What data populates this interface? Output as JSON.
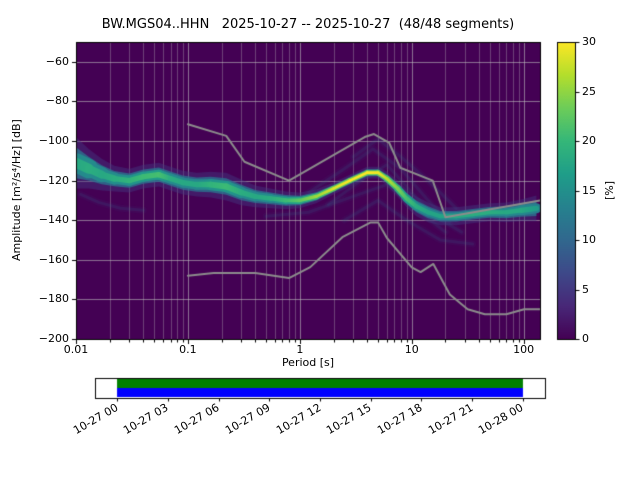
{
  "title": "BW.MGS04..HHN   2025-10-27 -- 2025-10-27  (48/48 segments)",
  "chart_data": {
    "type": "heatmap",
    "title": "BW.MGS04..HHN   2025-10-27 -- 2025-10-27  (48/48 segments)",
    "station_id": "BW.MGS04..HHN",
    "date_start": "2025-10-27",
    "date_end": "2025-10-27",
    "segments_used": 48,
    "segments_total": 48,
    "xlabel": "Period [s]",
    "ylabel": "Amplitude [m²/s⁴/Hz] [dB]",
    "background_color": "#440154",
    "grid_color": "#bebebe",
    "x_axis": {
      "scale": "log",
      "min": 0.01,
      "max": 140,
      "ticks": [
        {
          "v": 0.01,
          "label": "0.01"
        },
        {
          "v": 0.1,
          "label": "0.1"
        },
        {
          "v": 1,
          "label": "1"
        },
        {
          "v": 10,
          "label": "10"
        },
        {
          "v": 100,
          "label": "100"
        }
      ]
    },
    "y_axis": {
      "min": -200,
      "max": -50,
      "ticks": [
        {
          "v": -60,
          "label": "−60"
        },
        {
          "v": -80,
          "label": "−80"
        },
        {
          "v": -100,
          "label": "−100"
        },
        {
          "v": -120,
          "label": "−120"
        },
        {
          "v": -140,
          "label": "−140"
        },
        {
          "v": -160,
          "label": "−160"
        },
        {
          "v": -180,
          "label": "−180"
        },
        {
          "v": -200,
          "label": "−200"
        }
      ]
    },
    "colorbar": {
      "label": "[%]",
      "min": 0,
      "max": 30,
      "ticks": [
        0,
        5,
        10,
        15,
        20,
        25,
        30
      ],
      "viridis_stops": [
        "#440154",
        "#482878",
        "#3e4989",
        "#31688e",
        "#26828e",
        "#1f9e89",
        "#35b779",
        "#6dcd59",
        "#b4de2c",
        "#fde725"
      ]
    },
    "psd_band": [
      {
        "p": 0.01,
        "db": -111,
        "w": 26,
        "c": 0.6
      },
      {
        "p": 0.013,
        "db": -114,
        "w": 20,
        "c": 0.62
      },
      {
        "p": 0.017,
        "db": -117,
        "w": 16,
        "c": 0.6
      },
      {
        "p": 0.022,
        "db": -119,
        "w": 13,
        "c": 0.62
      },
      {
        "p": 0.03,
        "db": -120,
        "w": 12,
        "c": 0.65
      },
      {
        "p": 0.04,
        "db": -118,
        "w": 12,
        "c": 0.68
      },
      {
        "p": 0.055,
        "db": -117,
        "w": 12,
        "c": 0.7
      },
      {
        "p": 0.07,
        "db": -119,
        "w": 12,
        "c": 0.62
      },
      {
        "p": 0.09,
        "db": -121,
        "w": 12,
        "c": 0.6
      },
      {
        "p": 0.12,
        "db": -122,
        "w": 12,
        "c": 0.6
      },
      {
        "p": 0.16,
        "db": -122,
        "w": 13,
        "c": 0.65
      },
      {
        "p": 0.22,
        "db": -123,
        "w": 14,
        "c": 0.68
      },
      {
        "p": 0.3,
        "db": -126,
        "w": 13,
        "c": 0.62
      },
      {
        "p": 0.4,
        "db": -128,
        "w": 11,
        "c": 0.6
      },
      {
        "p": 0.55,
        "db": -129,
        "w": 10,
        "c": 0.62
      },
      {
        "p": 0.75,
        "db": -130,
        "w": 9,
        "c": 0.68
      },
      {
        "p": 1.0,
        "db": -130,
        "w": 8,
        "c": 0.75
      },
      {
        "p": 1.4,
        "db": -128,
        "w": 7,
        "c": 0.85
      },
      {
        "p": 2.0,
        "db": -124,
        "w": 6,
        "c": 0.95
      },
      {
        "p": 2.8,
        "db": -120,
        "w": 6,
        "c": 1.0
      },
      {
        "p": 4.0,
        "db": -116,
        "w": 6,
        "c": 1.0
      },
      {
        "p": 5.0,
        "db": -116,
        "w": 6,
        "c": 0.98
      },
      {
        "p": 6.0,
        "db": -119,
        "w": 7,
        "c": 0.9
      },
      {
        "p": 7.5,
        "db": -124,
        "w": 8,
        "c": 0.8
      },
      {
        "p": 9.0,
        "db": -129,
        "w": 9,
        "c": 0.7
      },
      {
        "p": 11,
        "db": -133,
        "w": 10,
        "c": 0.62
      },
      {
        "p": 14,
        "db": -136,
        "w": 10,
        "c": 0.58
      },
      {
        "p": 18,
        "db": -138,
        "w": 9,
        "c": 0.58
      },
      {
        "p": 25,
        "db": -138,
        "w": 9,
        "c": 0.6
      },
      {
        "p": 35,
        "db": -137,
        "w": 9,
        "c": 0.62
      },
      {
        "p": 50,
        "db": -136,
        "w": 9,
        "c": 0.62
      },
      {
        "p": 70,
        "db": -136,
        "w": 10,
        "c": 0.6
      },
      {
        "p": 95,
        "db": -135,
        "w": 11,
        "c": 0.6
      },
      {
        "p": 130,
        "db": -134,
        "w": 13,
        "c": 0.55
      }
    ],
    "wisps": [
      [
        [
          1.2,
          -126
        ],
        [
          2.5,
          -114
        ],
        [
          4.5,
          -104
        ],
        [
          8,
          -114
        ],
        [
          14,
          -130
        ],
        [
          22,
          -141
        ]
      ],
      [
        [
          1.8,
          -132
        ],
        [
          3.5,
          -120
        ],
        [
          6,
          -112
        ],
        [
          10,
          -126
        ],
        [
          16,
          -138
        ],
        [
          28,
          -146
        ]
      ],
      [
        [
          2.5,
          -140
        ],
        [
          5,
          -130
        ],
        [
          9,
          -140
        ],
        [
          18,
          -150
        ],
        [
          35,
          -152
        ]
      ],
      [
        [
          0.5,
          -138
        ],
        [
          1.2,
          -136
        ],
        [
          3,
          -128
        ],
        [
          6,
          -122
        ],
        [
          12,
          -136
        ],
        [
          20,
          -146
        ]
      ],
      [
        [
          3,
          -108
        ],
        [
          5,
          -99
        ],
        [
          8,
          -108
        ],
        [
          14,
          -120
        ],
        [
          25,
          -134
        ]
      ],
      [
        [
          0.011,
          -127
        ],
        [
          0.016,
          -131
        ],
        [
          0.025,
          -134
        ],
        [
          0.04,
          -135
        ]
      ]
    ],
    "noise_models": {
      "color": "#8c8c8c",
      "nhnm": [
        [
          0.1,
          -91.5
        ],
        [
          0.22,
          -97.4
        ],
        [
          0.32,
          -110.5
        ],
        [
          0.8,
          -120.0
        ],
        [
          3.8,
          -98.0
        ],
        [
          4.6,
          -96.5
        ],
        [
          6.3,
          -101.0
        ],
        [
          7.9,
          -113.5
        ],
        [
          15.4,
          -120.0
        ],
        [
          20.0,
          -138.5
        ],
        [
          140.0,
          -130.0
        ]
      ],
      "nlnm": [
        [
          0.1,
          -168.0
        ],
        [
          0.17,
          -166.7
        ],
        [
          0.4,
          -166.7
        ],
        [
          0.8,
          -169.2
        ],
        [
          1.24,
          -163.7
        ],
        [
          2.4,
          -148.6
        ],
        [
          4.3,
          -141.1
        ],
        [
          5.0,
          -141.1
        ],
        [
          6.0,
          -149.0
        ],
        [
          10.0,
          -163.8
        ],
        [
          12.0,
          -166.2
        ],
        [
          15.6,
          -162.1
        ],
        [
          21.9,
          -177.5
        ],
        [
          31.6,
          -185.0
        ],
        [
          45.0,
          -187.5
        ],
        [
          70.0,
          -187.5
        ],
        [
          101.0,
          -185.0
        ],
        [
          140.0,
          -185.0
        ]
      ]
    }
  },
  "timeline": {
    "tick_labels": [
      "10-27 00",
      "10-27 03",
      "10-27 06",
      "10-27 09",
      "10-27 12",
      "10-27 15",
      "10-27 18",
      "10-27 21",
      "10-28 00"
    ],
    "coverage": {
      "start_frac": 0.049,
      "end_frac": 0.951,
      "top_color": "#008000",
      "bottom_color": "#0000ff",
      "frame_color": "#000000"
    }
  }
}
